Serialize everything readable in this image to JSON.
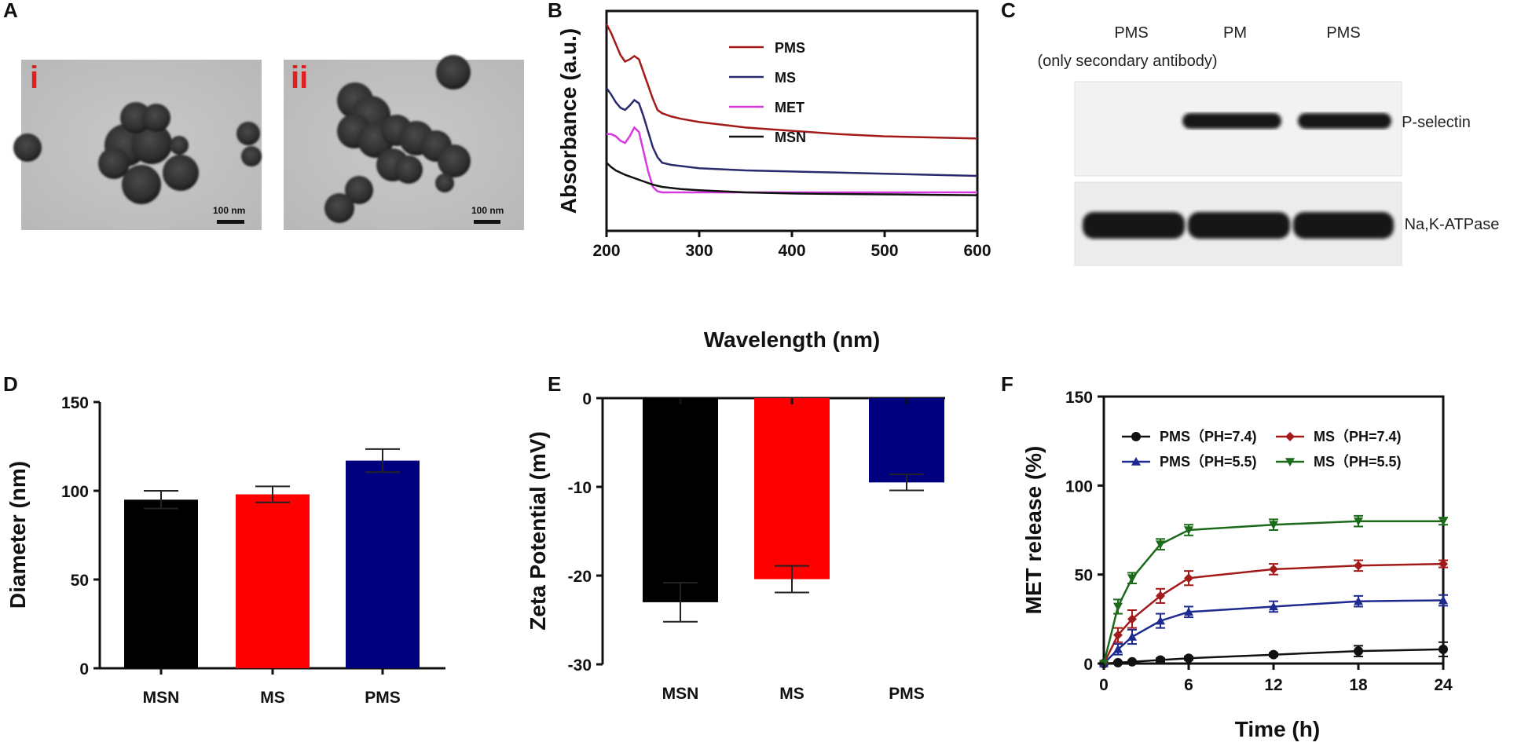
{
  "panels": {
    "A": {
      "letter": "A",
      "images": [
        {
          "label": "i",
          "scale": "100 nm"
        },
        {
          "label": "ii",
          "scale": "100 nm"
        }
      ]
    },
    "C": {
      "letter": "C",
      "lane_labels": [
        "PMS",
        "PM",
        "PMS"
      ],
      "lane_sublabel": "(only secondary antibody)",
      "proteins": [
        "P-selectin",
        "Na,K-ATPase"
      ]
    }
  },
  "chart_data": [
    {
      "id": "B",
      "letter": "B",
      "type": "line",
      "xlabel": "Wavelength (nm)",
      "ylabel": "Absorbance (a.u.)",
      "xlim": [
        200,
        600
      ],
      "xticks": [
        200,
        300,
        400,
        500,
        600
      ],
      "ylim": [
        0,
        1
      ],
      "legend_position": "top-left",
      "series": [
        {
          "name": "PMS",
          "color": "#a31a1a",
          "x": [
            200,
            205,
            210,
            215,
            220,
            225,
            230,
            235,
            240,
            245,
            250,
            255,
            260,
            270,
            280,
            300,
            350,
            400,
            450,
            500,
            550,
            600
          ],
          "y": [
            0.94,
            0.9,
            0.85,
            0.8,
            0.77,
            0.78,
            0.795,
            0.78,
            0.72,
            0.66,
            0.6,
            0.55,
            0.535,
            0.52,
            0.51,
            0.495,
            0.47,
            0.455,
            0.44,
            0.43,
            0.425,
            0.42
          ]
        },
        {
          "name": "MS",
          "color": "#2a2a6e",
          "x": [
            200,
            205,
            210,
            215,
            220,
            225,
            230,
            235,
            240,
            245,
            250,
            255,
            260,
            270,
            280,
            300,
            350,
            400,
            450,
            500,
            550,
            600
          ],
          "y": [
            0.65,
            0.62,
            0.585,
            0.56,
            0.55,
            0.57,
            0.595,
            0.58,
            0.52,
            0.45,
            0.38,
            0.335,
            0.31,
            0.3,
            0.295,
            0.285,
            0.275,
            0.27,
            0.265,
            0.26,
            0.255,
            0.25
          ]
        },
        {
          "name": "MET",
          "color": "#d63adf",
          "x": [
            200,
            205,
            210,
            215,
            220,
            225,
            230,
            235,
            240,
            245,
            250,
            255,
            260,
            270,
            280,
            300,
            350,
            400,
            450,
            500,
            550,
            600
          ],
          "y": [
            0.44,
            0.44,
            0.43,
            0.41,
            0.4,
            0.43,
            0.47,
            0.45,
            0.36,
            0.27,
            0.2,
            0.18,
            0.175,
            0.175,
            0.175,
            0.175,
            0.175,
            0.175,
            0.175,
            0.175,
            0.175,
            0.175
          ]
        },
        {
          "name": "MSN",
          "color": "#111111",
          "x": [
            200,
            205,
            210,
            220,
            230,
            240,
            250,
            260,
            270,
            280,
            300,
            350,
            400,
            450,
            500,
            550,
            600
          ],
          "y": [
            0.31,
            0.29,
            0.275,
            0.255,
            0.24,
            0.225,
            0.21,
            0.2,
            0.195,
            0.19,
            0.185,
            0.175,
            0.17,
            0.168,
            0.166,
            0.164,
            0.162
          ]
        }
      ]
    },
    {
      "id": "D",
      "letter": "D",
      "type": "bar",
      "ylabel": "Diameter (nm)",
      "categories": [
        "MSN",
        "MS",
        "PMS"
      ],
      "values": [
        95,
        98,
        117
      ],
      "errors": [
        5,
        4.5,
        6.5
      ],
      "colors": [
        "#000000",
        "#ff0000",
        "#00007f"
      ],
      "ylim": [
        0,
        150
      ],
      "yticks": [
        0,
        50,
        100,
        150
      ]
    },
    {
      "id": "E",
      "letter": "E",
      "type": "bar",
      "ylabel": "Zeta Potential (mV)",
      "categories": [
        "MSN",
        "MS",
        "PMS"
      ],
      "values": [
        -23,
        -20.4,
        -9.5
      ],
      "errors": [
        2.2,
        1.5,
        0.9
      ],
      "colors": [
        "#000000",
        "#ff0000",
        "#00007f"
      ],
      "ylim": [
        -30,
        0
      ],
      "yticks": [
        0,
        -10,
        -20,
        -30
      ]
    },
    {
      "id": "F",
      "letter": "F",
      "type": "line",
      "xlabel": "Time (h)",
      "ylabel": "MET release (%)",
      "xlim": [
        0,
        24
      ],
      "xticks": [
        0,
        6,
        12,
        18,
        24
      ],
      "ylim": [
        0,
        150
      ],
      "yticks": [
        0,
        50,
        100,
        150
      ],
      "legend_position": "top",
      "series": [
        {
          "name": "PMS（PH=7.4)",
          "color": "#111111",
          "marker": "circle",
          "x": [
            0,
            1,
            2,
            4,
            6,
            12,
            18,
            24
          ],
          "y": [
            0,
            0.5,
            1,
            2,
            3,
            5,
            7,
            8
          ],
          "err": [
            0,
            0.5,
            0.5,
            1,
            1,
            1,
            3,
            4
          ]
        },
        {
          "name": "MS（PH=7.4)",
          "color": "#a31a1a",
          "marker": "diamond",
          "x": [
            0,
            1,
            2,
            4,
            6,
            12,
            18,
            24
          ],
          "y": [
            0,
            16,
            25,
            38,
            48,
            53,
            55,
            56
          ],
          "err": [
            0,
            4,
            5,
            4,
            4,
            3,
            3,
            2
          ]
        },
        {
          "name": "PMS（PH=5.5)",
          "color": "#1e2a8f",
          "marker": "triangle-up",
          "x": [
            0,
            1,
            2,
            4,
            6,
            12,
            18,
            24
          ],
          "y": [
            0,
            8,
            15,
            24,
            29,
            32,
            35,
            35.5
          ],
          "err": [
            0,
            3,
            4,
            4,
            3,
            3,
            3,
            3
          ]
        },
        {
          "name": "MS（PH=5.5)",
          "color": "#1a6a1a",
          "marker": "triangle-down",
          "x": [
            0,
            1,
            2,
            4,
            6,
            12,
            18,
            24
          ],
          "y": [
            0,
            32,
            48,
            67,
            75,
            78,
            80,
            80
          ],
          "err": [
            0,
            4,
            3,
            3,
            3,
            3,
            3,
            2
          ]
        }
      ]
    }
  ]
}
